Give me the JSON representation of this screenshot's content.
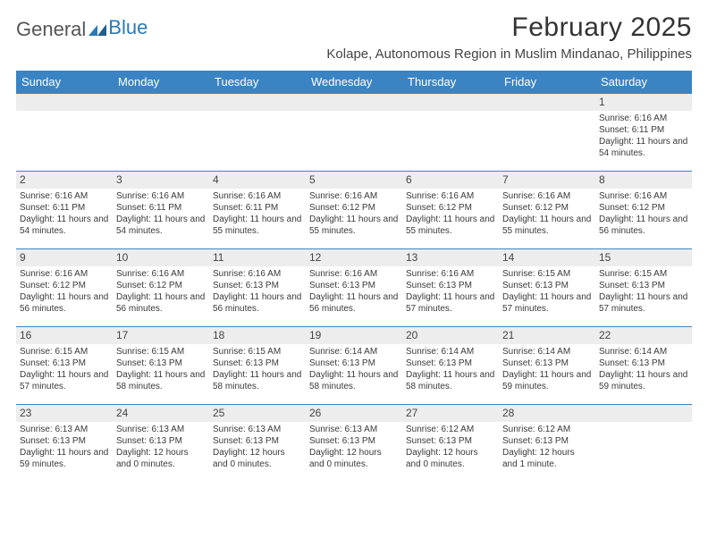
{
  "logo": {
    "text1": "General",
    "text2": "Blue"
  },
  "title": "February 2025",
  "location": "Kolape, Autonomous Region in Muslim Mindanao, Philippines",
  "colors": {
    "header_bg": "#3b84c4",
    "header_fg": "#ffffff",
    "date_bg": "#ededed",
    "text": "#333333",
    "logo_blue": "#2a7ab8"
  },
  "fonts": {
    "title_size": 30,
    "location_size": 15,
    "day_header_size": 13,
    "date_size": 12,
    "body_size": 10
  },
  "day_names": [
    "Sunday",
    "Monday",
    "Tuesday",
    "Wednesday",
    "Thursday",
    "Friday",
    "Saturday"
  ],
  "weeks": [
    [
      null,
      null,
      null,
      null,
      null,
      null,
      {
        "d": "1",
        "sr": "Sunrise: 6:16 AM",
        "ss": "Sunset: 6:11 PM",
        "dl": "Daylight: 11 hours and 54 minutes."
      }
    ],
    [
      {
        "d": "2",
        "sr": "Sunrise: 6:16 AM",
        "ss": "Sunset: 6:11 PM",
        "dl": "Daylight: 11 hours and 54 minutes."
      },
      {
        "d": "3",
        "sr": "Sunrise: 6:16 AM",
        "ss": "Sunset: 6:11 PM",
        "dl": "Daylight: 11 hours and 54 minutes."
      },
      {
        "d": "4",
        "sr": "Sunrise: 6:16 AM",
        "ss": "Sunset: 6:11 PM",
        "dl": "Daylight: 11 hours and 55 minutes."
      },
      {
        "d": "5",
        "sr": "Sunrise: 6:16 AM",
        "ss": "Sunset: 6:12 PM",
        "dl": "Daylight: 11 hours and 55 minutes."
      },
      {
        "d": "6",
        "sr": "Sunrise: 6:16 AM",
        "ss": "Sunset: 6:12 PM",
        "dl": "Daylight: 11 hours and 55 minutes."
      },
      {
        "d": "7",
        "sr": "Sunrise: 6:16 AM",
        "ss": "Sunset: 6:12 PM",
        "dl": "Daylight: 11 hours and 55 minutes."
      },
      {
        "d": "8",
        "sr": "Sunrise: 6:16 AM",
        "ss": "Sunset: 6:12 PM",
        "dl": "Daylight: 11 hours and 56 minutes."
      }
    ],
    [
      {
        "d": "9",
        "sr": "Sunrise: 6:16 AM",
        "ss": "Sunset: 6:12 PM",
        "dl": "Daylight: 11 hours and 56 minutes."
      },
      {
        "d": "10",
        "sr": "Sunrise: 6:16 AM",
        "ss": "Sunset: 6:12 PM",
        "dl": "Daylight: 11 hours and 56 minutes."
      },
      {
        "d": "11",
        "sr": "Sunrise: 6:16 AM",
        "ss": "Sunset: 6:13 PM",
        "dl": "Daylight: 11 hours and 56 minutes."
      },
      {
        "d": "12",
        "sr": "Sunrise: 6:16 AM",
        "ss": "Sunset: 6:13 PM",
        "dl": "Daylight: 11 hours and 56 minutes."
      },
      {
        "d": "13",
        "sr": "Sunrise: 6:16 AM",
        "ss": "Sunset: 6:13 PM",
        "dl": "Daylight: 11 hours and 57 minutes."
      },
      {
        "d": "14",
        "sr": "Sunrise: 6:15 AM",
        "ss": "Sunset: 6:13 PM",
        "dl": "Daylight: 11 hours and 57 minutes."
      },
      {
        "d": "15",
        "sr": "Sunrise: 6:15 AM",
        "ss": "Sunset: 6:13 PM",
        "dl": "Daylight: 11 hours and 57 minutes."
      }
    ],
    [
      {
        "d": "16",
        "sr": "Sunrise: 6:15 AM",
        "ss": "Sunset: 6:13 PM",
        "dl": "Daylight: 11 hours and 57 minutes."
      },
      {
        "d": "17",
        "sr": "Sunrise: 6:15 AM",
        "ss": "Sunset: 6:13 PM",
        "dl": "Daylight: 11 hours and 58 minutes."
      },
      {
        "d": "18",
        "sr": "Sunrise: 6:15 AM",
        "ss": "Sunset: 6:13 PM",
        "dl": "Daylight: 11 hours and 58 minutes."
      },
      {
        "d": "19",
        "sr": "Sunrise: 6:14 AM",
        "ss": "Sunset: 6:13 PM",
        "dl": "Daylight: 11 hours and 58 minutes."
      },
      {
        "d": "20",
        "sr": "Sunrise: 6:14 AM",
        "ss": "Sunset: 6:13 PM",
        "dl": "Daylight: 11 hours and 58 minutes."
      },
      {
        "d": "21",
        "sr": "Sunrise: 6:14 AM",
        "ss": "Sunset: 6:13 PM",
        "dl": "Daylight: 11 hours and 59 minutes."
      },
      {
        "d": "22",
        "sr": "Sunrise: 6:14 AM",
        "ss": "Sunset: 6:13 PM",
        "dl": "Daylight: 11 hours and 59 minutes."
      }
    ],
    [
      {
        "d": "23",
        "sr": "Sunrise: 6:13 AM",
        "ss": "Sunset: 6:13 PM",
        "dl": "Daylight: 11 hours and 59 minutes."
      },
      {
        "d": "24",
        "sr": "Sunrise: 6:13 AM",
        "ss": "Sunset: 6:13 PM",
        "dl": "Daylight: 12 hours and 0 minutes."
      },
      {
        "d": "25",
        "sr": "Sunrise: 6:13 AM",
        "ss": "Sunset: 6:13 PM",
        "dl": "Daylight: 12 hours and 0 minutes."
      },
      {
        "d": "26",
        "sr": "Sunrise: 6:13 AM",
        "ss": "Sunset: 6:13 PM",
        "dl": "Daylight: 12 hours and 0 minutes."
      },
      {
        "d": "27",
        "sr": "Sunrise: 6:12 AM",
        "ss": "Sunset: 6:13 PM",
        "dl": "Daylight: 12 hours and 0 minutes."
      },
      {
        "d": "28",
        "sr": "Sunrise: 6:12 AM",
        "ss": "Sunset: 6:13 PM",
        "dl": "Daylight: 12 hours and 1 minute."
      },
      null
    ]
  ]
}
